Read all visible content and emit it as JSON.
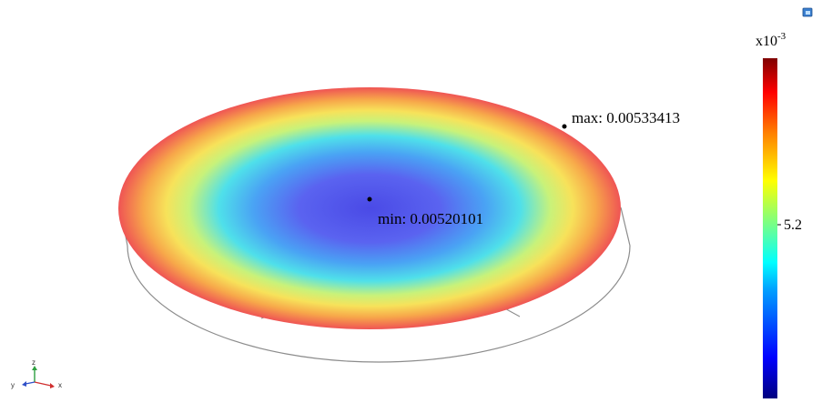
{
  "plot": {
    "max_label": "max: 0.00533413",
    "min_label": "min: 0.00520101"
  },
  "colorbar": {
    "exponent_base": "x10",
    "exponent_power": "-3",
    "tick_label": "5.2",
    "colormap": [
      "#00007f",
      "#0000ff",
      "#00a0ff",
      "#00ffff",
      "#7fff7f",
      "#ffff00",
      "#ff8000",
      "#ff0000",
      "#7f0000"
    ]
  },
  "axes_triad": {
    "x": "x",
    "y": "y",
    "z": "z"
  },
  "icons": {
    "corner": "window-restore-icon"
  }
}
